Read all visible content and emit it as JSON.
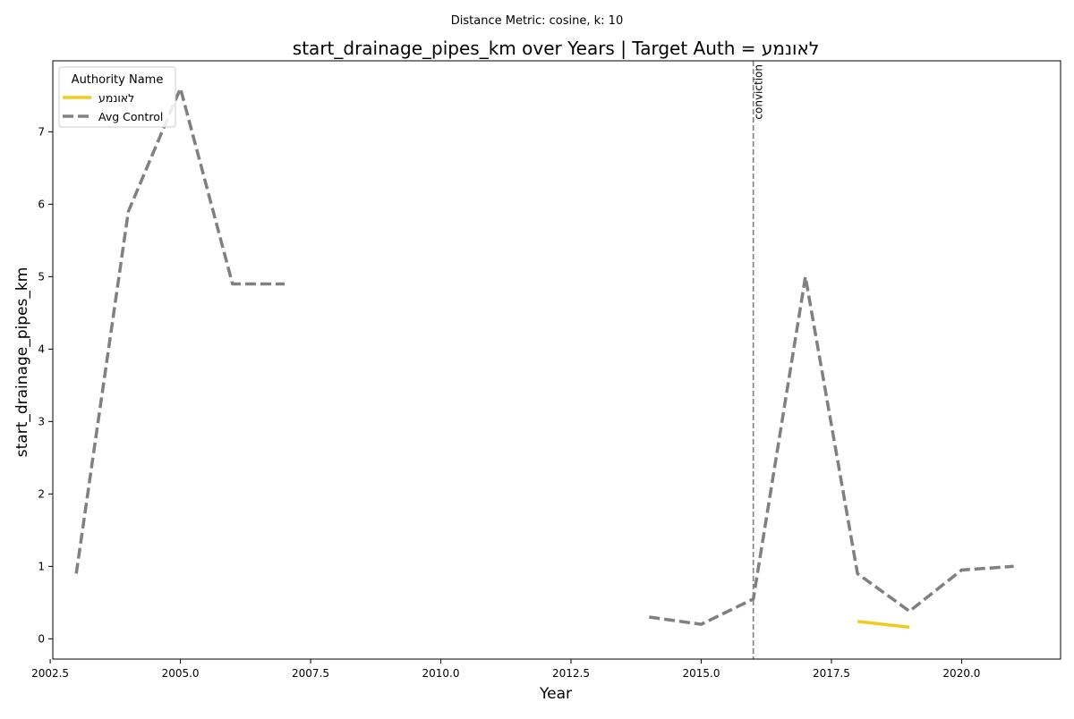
{
  "chart_data": {
    "type": "line",
    "suptitle": "Distance Metric: cosine, k: 10",
    "title": "start_drainage_pipes_km over Years | Target Auth = לאונמע",
    "xlabel": "Year",
    "ylabel": "start_drainage_pipes_km",
    "xlim": [
      2002.55,
      2021.9
    ],
    "ylim": [
      -0.28,
      7.98
    ],
    "xticks": [
      2002.5,
      2005.0,
      2007.5,
      2010.0,
      2012.5,
      2015.0,
      2017.5,
      2020.0
    ],
    "xtick_labels": [
      "2002.5",
      "2005.0",
      "2007.5",
      "2010.0",
      "2012.5",
      "2015.0",
      "2017.5",
      "2020.0"
    ],
    "yticks": [
      0,
      1,
      2,
      3,
      4,
      5,
      6,
      7
    ],
    "ytick_labels": [
      "0",
      "1",
      "2",
      "3",
      "4",
      "5",
      "6",
      "7"
    ],
    "grid": false,
    "legend": {
      "title": "Authority Name",
      "placement": "top-left"
    },
    "series": [
      {
        "name": "לאונמע",
        "color": "#f0cc1f",
        "style": "solid",
        "x": [
          2018,
          2019
        ],
        "y": [
          0.24,
          0.16
        ]
      },
      {
        "name": "Avg Control",
        "color": "#808080",
        "style": "dashed",
        "segments": [
          {
            "x": [
              2003,
              2004,
              2005,
              2006,
              2007
            ],
            "y": [
              0.9,
              5.9,
              7.6,
              4.9,
              4.9
            ]
          },
          {
            "x": [
              2014,
              2015,
              2016,
              2017,
              2018,
              2019,
              2020,
              2021
            ],
            "y": [
              0.3,
              0.2,
              0.55,
              5.0,
              0.9,
              0.38,
              0.95,
              1.0
            ]
          }
        ]
      }
    ],
    "vline": {
      "x": 2016,
      "label": "conviction",
      "color": "#808080"
    }
  }
}
